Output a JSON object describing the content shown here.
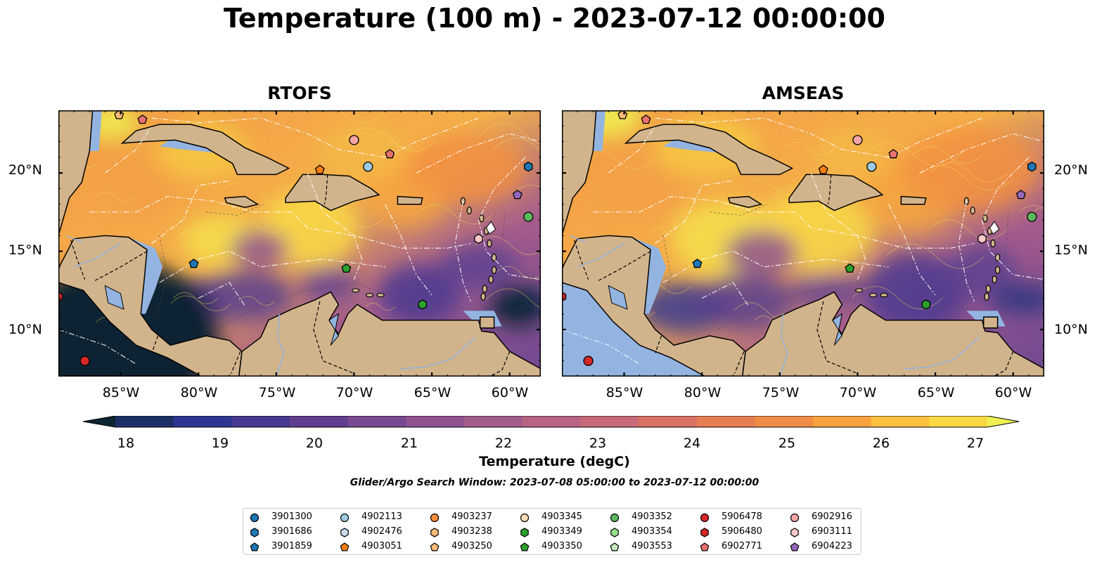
{
  "title": "Temperature (100 m) - 2023-07-12 00:00:00",
  "panels": [
    {
      "name": "RTOFS",
      "variant": "rtofs"
    },
    {
      "name": "AMSEAS",
      "variant": "amseas"
    }
  ],
  "map_extent": {
    "lon_min": -89,
    "lon_max": -58,
    "lat_min": 7,
    "lat_max": 24
  },
  "lat_ticks": [
    "20°N",
    "15°N",
    "10°N"
  ],
  "lon_ticks": [
    "85°W",
    "80°W",
    "75°W",
    "70°W",
    "65°W",
    "60°W"
  ],
  "colorbar": {
    "label": "Temperature (degC)",
    "ticks": [
      "18",
      "19",
      "20",
      "21",
      "22",
      "23",
      "24",
      "25",
      "26",
      "27"
    ],
    "min": 18,
    "max": 27,
    "colors": [
      "#0d2433",
      "#1b2f66",
      "#2e3590",
      "#47398f",
      "#5f3f8e",
      "#784890",
      "#8e5290",
      "#a45c8c",
      "#b86284",
      "#c96a7a",
      "#da7266",
      "#e77d52",
      "#f08c45",
      "#f8a23f",
      "#fbbe3f",
      "#f8d944",
      "#eef150"
    ]
  },
  "search_window": "Glider/Argo Search Window: 2023-07-08 05:00:00 to 2023-07-12 00:00:00",
  "legend": [
    {
      "id": "3901300",
      "marker": "circle",
      "color": "#1f77b4"
    },
    {
      "id": "3901686",
      "marker": "hexagon",
      "color": "#1f77b4"
    },
    {
      "id": "3901859",
      "marker": "pentagon",
      "color": "#1f77b4"
    },
    {
      "id": "4902113",
      "marker": "circle",
      "color": "#9ecae1"
    },
    {
      "id": "4902476",
      "marker": "hexagon",
      "color": "#c6dbef"
    },
    {
      "id": "4903051",
      "marker": "pentagon",
      "color": "#ff7f0e"
    },
    {
      "id": "4903237",
      "marker": "circle",
      "color": "#ff8c3a"
    },
    {
      "id": "4903238",
      "marker": "hexagon",
      "color": "#ffbb78"
    },
    {
      "id": "4903250",
      "marker": "pentagon",
      "color": "#ffbb78"
    },
    {
      "id": "4903345",
      "marker": "circle",
      "color": "#fdd9b5"
    },
    {
      "id": "4903349",
      "marker": "hexagon",
      "color": "#2ca02c"
    },
    {
      "id": "4903350",
      "marker": "pentagon",
      "color": "#2ca02c"
    },
    {
      "id": "4903352",
      "marker": "circle",
      "color": "#5cb85c"
    },
    {
      "id": "4903354",
      "marker": "hexagon",
      "color": "#98df8a"
    },
    {
      "id": "4903553",
      "marker": "pentagon",
      "color": "#c7e9c0"
    },
    {
      "id": "5906478",
      "marker": "circle",
      "color": "#d62728"
    },
    {
      "id": "5906480",
      "marker": "hexagon",
      "color": "#d62728"
    },
    {
      "id": "6902771",
      "marker": "pentagon",
      "color": "#e8726f"
    },
    {
      "id": "6902916",
      "marker": "circle",
      "color": "#f4a6a6"
    },
    {
      "id": "6903111",
      "marker": "hexagon",
      "color": "#fcc9c9"
    },
    {
      "id": "6904223",
      "marker": "pentagon",
      "color": "#9467bd"
    }
  ],
  "floats_on_map": [
    {
      "id": "3901686",
      "lon": -58.8,
      "lat": 20.4
    },
    {
      "id": "4902113",
      "lon": -69.1,
      "lat": 20.4
    },
    {
      "id": "4903051",
      "lon": -72.2,
      "lat": 20.2
    },
    {
      "id": "6902916",
      "lon": -70.0,
      "lat": 22.1
    },
    {
      "id": "6902771",
      "lon": -67.7,
      "lat": 21.2
    },
    {
      "id": "6904223",
      "lon": -59.5,
      "lat": 18.6
    },
    {
      "id": "4903352",
      "lon": -58.8,
      "lat": 17.2
    },
    {
      "id": "6903111",
      "lon": -62.0,
      "lat": 15.8
    },
    {
      "id": "4903350",
      "lon": -70.5,
      "lat": 13.9
    },
    {
      "id": "4903349",
      "lon": -65.6,
      "lat": 11.6
    },
    {
      "id": "3901859",
      "lon": -80.3,
      "lat": 14.2
    },
    {
      "id": "5906478",
      "lon": -87.3,
      "lat": 8.0
    },
    {
      "id": "5906480",
      "lon": -89.0,
      "lat": 12.1
    },
    {
      "id": "4903250",
      "lon": -85.1,
      "lat": 23.7
    },
    {
      "id": "6902771",
      "lon": -83.6,
      "lat": 23.4
    }
  ]
}
